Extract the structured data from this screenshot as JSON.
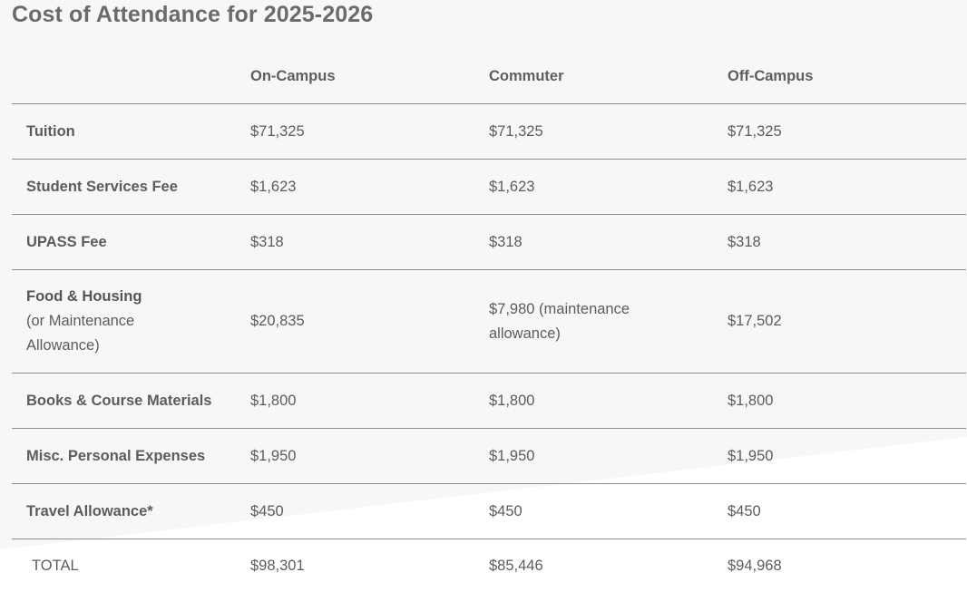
{
  "title": "Cost of Attendance for 2025-2026",
  "table": {
    "columns": [
      "",
      "On-Campus",
      "Commuter",
      "Off-Campus"
    ],
    "rows": [
      {
        "label": "Tuition",
        "values": [
          "$71,325",
          "$71,325",
          "$71,325"
        ]
      },
      {
        "label": "Student Services Fee",
        "values": [
          "$1,623",
          "$1,623",
          "$1,623"
        ]
      },
      {
        "label": "UPASS Fee",
        "values": [
          "$318",
          "$318",
          "$318"
        ]
      },
      {
        "label": "Food & Housing",
        "sublabel_1": "(or Maintenance",
        "sublabel_2": "Allowance)",
        "values": [
          "$20,835",
          "$7,980 (maintenance",
          "$17,502"
        ],
        "commuter_line_2": "allowance)"
      },
      {
        "label": "Books & Course Materials",
        "values": [
          "$1,800",
          "$1,800",
          "$1,800"
        ]
      },
      {
        "label": "Misc. Personal Expenses",
        "values": [
          "$1,950",
          "$1,950",
          "$1,950"
        ]
      },
      {
        "label": "Travel Allowance*",
        "values": [
          "$450",
          "$450",
          "$450"
        ]
      }
    ],
    "total": {
      "label": "TOTAL",
      "values": [
        "$98,301",
        "$85,446",
        "$94,968"
      ]
    }
  },
  "colors": {
    "background": "#ffffff",
    "background_shade": "#f7f7f7",
    "text": "#5c5c5c",
    "rule": "#8e8e8e"
  }
}
